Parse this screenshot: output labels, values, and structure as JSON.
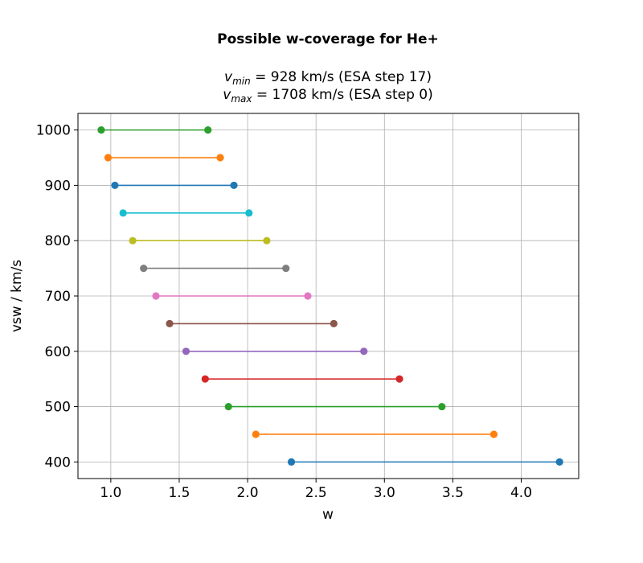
{
  "chart_data": {
    "type": "line",
    "title": "Possible w-coverage for He+",
    "subtitle": [
      {
        "var": "v",
        "sub": "min",
        "rest": " = 928 km/s (ESA step 17)"
      },
      {
        "var": "v",
        "sub": "max",
        "rest": " = 1708 km/s (ESA step 0)"
      }
    ],
    "xlabel": "w",
    "ylabel": "vsw / km/s",
    "xlim": [
      0.76,
      4.42
    ],
    "ylim": [
      370,
      1030
    ],
    "xticks": [
      1.0,
      1.5,
      2.0,
      2.5,
      3.0,
      3.5,
      4.0
    ],
    "xtick_labels": [
      "1.0",
      "1.5",
      "2.0",
      "2.5",
      "3.0",
      "3.5",
      "4.0"
    ],
    "yticks": [
      400,
      500,
      600,
      700,
      800,
      900,
      1000
    ],
    "ytick_labels": [
      "400",
      "500",
      "600",
      "700",
      "800",
      "900",
      "1000"
    ],
    "grid": true,
    "series": [
      {
        "color": "#1f77b4",
        "x": [
          2.32,
          4.28
        ],
        "y": [
          400,
          400
        ]
      },
      {
        "color": "#ff7f0e",
        "x": [
          2.06,
          3.8
        ],
        "y": [
          450,
          450
        ]
      },
      {
        "color": "#2ca02c",
        "x": [
          1.86,
          3.42
        ],
        "y": [
          500,
          500
        ]
      },
      {
        "color": "#d62728",
        "x": [
          1.69,
          3.11
        ],
        "y": [
          550,
          550
        ]
      },
      {
        "color": "#9467bd",
        "x": [
          1.55,
          2.85
        ],
        "y": [
          600,
          600
        ]
      },
      {
        "color": "#8c564b",
        "x": [
          1.43,
          2.63
        ],
        "y": [
          650,
          650
        ]
      },
      {
        "color": "#e377c2",
        "x": [
          1.33,
          2.44
        ],
        "y": [
          700,
          700
        ]
      },
      {
        "color": "#7f7f7f",
        "x": [
          1.24,
          2.28
        ],
        "y": [
          750,
          750
        ]
      },
      {
        "color": "#bcbd22",
        "x": [
          1.16,
          2.14
        ],
        "y": [
          800,
          800
        ]
      },
      {
        "color": "#17becf",
        "x": [
          1.09,
          2.01
        ],
        "y": [
          850,
          850
        ]
      },
      {
        "color": "#1f77b4",
        "x": [
          1.03,
          1.9
        ],
        "y": [
          900,
          900
        ]
      },
      {
        "color": "#ff7f0e",
        "x": [
          0.98,
          1.8
        ],
        "y": [
          950,
          950
        ]
      },
      {
        "color": "#2ca02c",
        "x": [
          0.93,
          1.71
        ],
        "y": [
          1000,
          1000
        ]
      }
    ]
  }
}
